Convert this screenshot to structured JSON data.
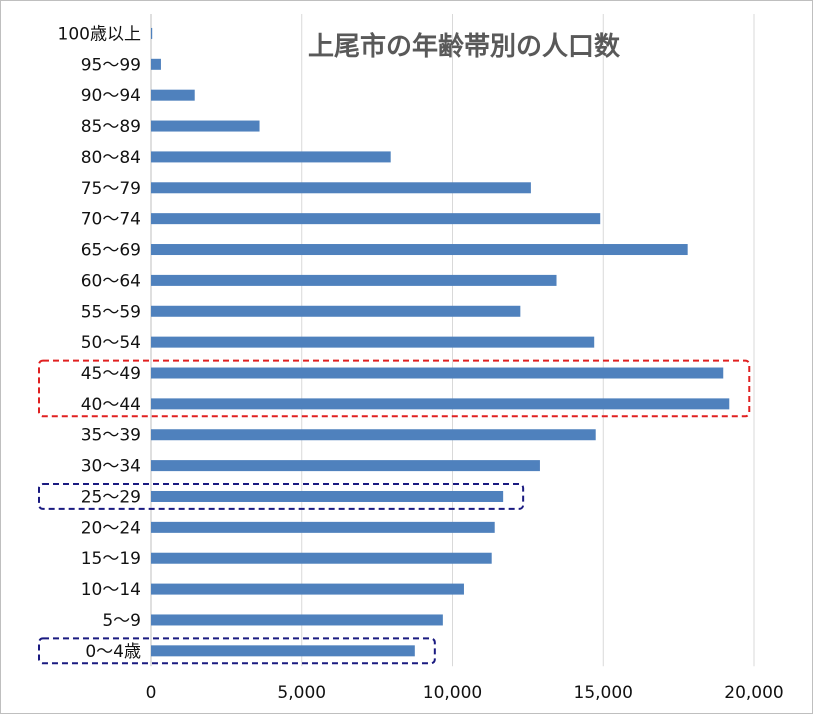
{
  "chart_data": {
    "type": "bar",
    "orientation": "horizontal",
    "title": "上尾市の年齢帯別の人口数",
    "xlabel": "",
    "ylabel": "",
    "categories": [
      "100歳以上",
      "95～99",
      "90～94",
      "85～89",
      "80～84",
      "75～79",
      "70～74",
      "65～69",
      "60～64",
      "55～59",
      "50～54",
      "45～49",
      "40～44",
      "35～39",
      "30～34",
      "25～29",
      "20～24",
      "15～19",
      "10～14",
      "5～9",
      "0～4歳"
    ],
    "values": [
      40,
      330,
      1450,
      3600,
      7950,
      12600,
      14900,
      17800,
      13450,
      12250,
      14700,
      18980,
      19180,
      14750,
      12900,
      11680,
      11400,
      11300,
      10380,
      9680,
      8750
    ],
    "xlim": [
      0,
      20000
    ],
    "xticks": [
      "0",
      "5,000",
      "10,000",
      "15,000",
      "20,000"
    ],
    "grid": true,
    "bar_color": "#4f81bd",
    "highlights": [
      {
        "categories": [
          "45～49",
          "40～44"
        ],
        "color": "#e02020",
        "style": "dashed"
      },
      {
        "categories": [
          "25～29"
        ],
        "color": "#1a1a80",
        "style": "dashed"
      },
      {
        "categories": [
          "0～4歳"
        ],
        "color": "#1a1a80",
        "style": "dashed"
      }
    ]
  }
}
